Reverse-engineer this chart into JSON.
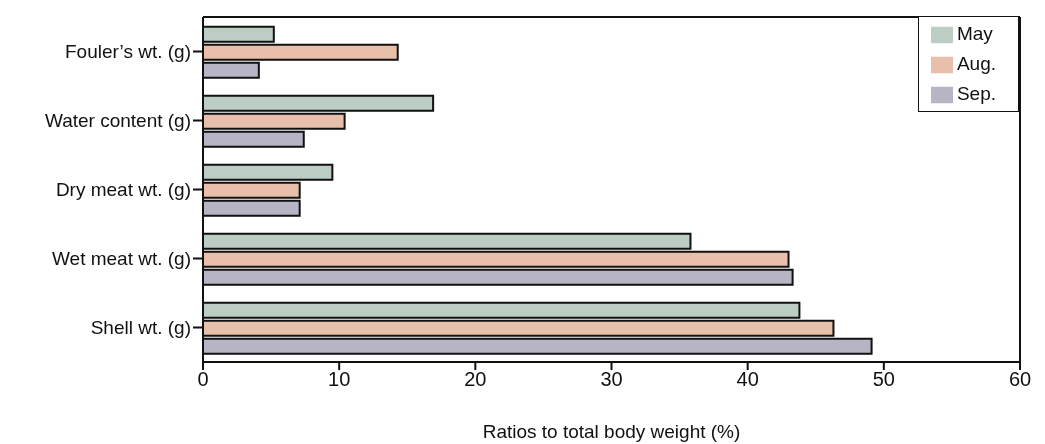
{
  "chart_data": {
    "type": "bar",
    "orientation": "horizontal",
    "xlabel": "Ratios to total body weight (%)",
    "categories": [
      "Fouler’s wt. (g)",
      "Water content (g)",
      "Dry meat wt. (g)",
      "Wet meat wt. (g)",
      "Shell wt. (g)"
    ],
    "series": [
      {
        "name": "May",
        "color": "#bccdc4",
        "values": [
          5.2,
          16.9,
          9.5,
          35.8,
          43.8
        ]
      },
      {
        "name": "Aug.",
        "color": "#e8bfaa",
        "values": [
          14.3,
          10.4,
          7.1,
          43.0,
          46.3
        ]
      },
      {
        "name": "Sep.",
        "color": "#b7b5c4",
        "values": [
          4.1,
          7.4,
          7.1,
          43.3,
          49.1
        ]
      }
    ],
    "xlim": [
      0,
      60
    ],
    "xticks": [
      0,
      10,
      20,
      30,
      40,
      50,
      60
    ],
    "grid": false,
    "legend": "top right"
  }
}
